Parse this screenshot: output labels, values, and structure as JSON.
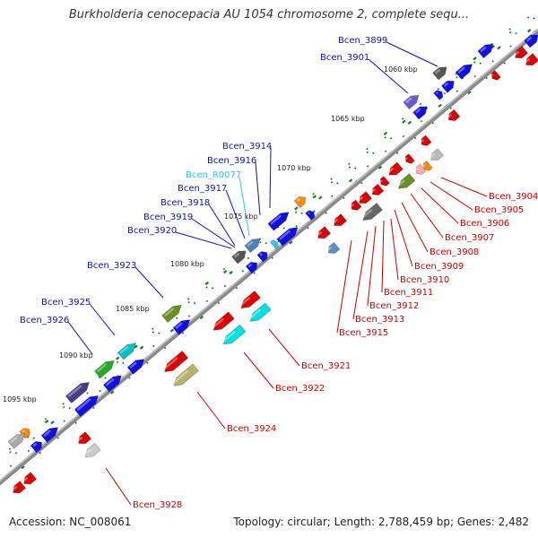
{
  "header": {
    "title": "Burkholderia cenocepacia AU 1054 chromosome 2, complete sequ..."
  },
  "footer": {
    "accession": "Accession: NC_008061",
    "summary": "Topology: circular; Length: 2,788,459 bp; Genes: 2,482"
  },
  "ruler": [
    "1060 kbp",
    "1065 kbp",
    "1070 kbp",
    "1075 kbp",
    "1080 kbp",
    "1085 kbp",
    "1090 kbp",
    "1095 kbp"
  ],
  "colors": {
    "forward_label": "#1010b0",
    "reverse_label": "#cc0000",
    "rna_label": "#30c0ff",
    "backbone": "#888888",
    "tick": "#1a7a1a"
  },
  "forward_labels": [
    "Bcen_3899",
    "Bcen_3901",
    "Bcen_3914",
    "Bcen_3916",
    "Bcen_R0077",
    "Bcen_3917",
    "Bcen_3918",
    "Bcen_3919",
    "Bcen_3920",
    "Bcen_3923",
    "Bcen_3925",
    "Bcen_3926"
  ],
  "reverse_labels": [
    "Bcen_3904",
    "Bcen_3905",
    "Bcen_3906",
    "Bcen_3907",
    "Bcen_3908",
    "Bcen_3909",
    "Bcen_3910",
    "Bcen_3911",
    "Bcen_3912",
    "Bcen_3913",
    "Bcen_3915",
    "Bcen_3921",
    "Bcen_3922",
    "Bcen_3924",
    "Bcen_3928"
  ]
}
